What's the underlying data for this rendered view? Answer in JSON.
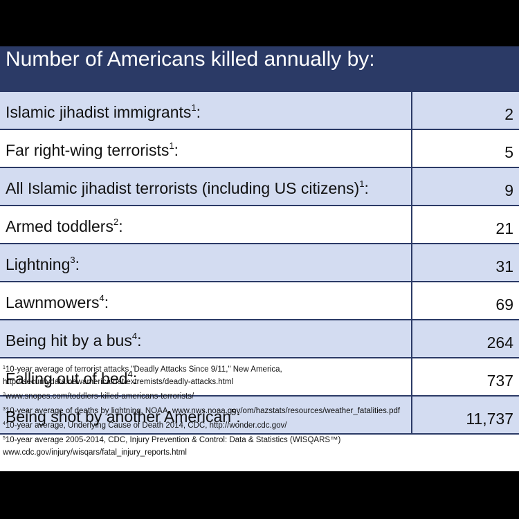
{
  "title": "Number of Americans killed annually by:",
  "rows": [
    {
      "label": "Islamic jihadist immigrants",
      "ref": "1",
      "suffix": ":",
      "value": "2"
    },
    {
      "label": "Far right-wing terrorists",
      "ref": "1",
      "suffix": ":",
      "value": "5"
    },
    {
      "label": "All Islamic jihadist terrorists (including US citizens)",
      "ref": "1",
      "suffix": ":",
      "value": "9"
    },
    {
      "label": "Armed toddlers",
      "ref": "2",
      "suffix": ":",
      "value": "21"
    },
    {
      "label": "Lightning",
      "ref": "3",
      "suffix": ":",
      "value": "31"
    },
    {
      "label": "Lawnmowers",
      "ref": "4",
      "suffix": ":",
      "value": "69"
    },
    {
      "label": "Being hit by a bus",
      "ref": "4",
      "suffix": ":",
      "value": "264"
    },
    {
      "label": "Falling out of bed",
      "ref": "4",
      "suffix": ":",
      "value": "737"
    },
    {
      "label": "Being shot by another American",
      "ref": "5",
      "suffix": ":",
      "value": "11,737"
    }
  ],
  "footnotes": [
    {
      "num": "1",
      "line1": "10-year average of terrorist attacks \"Deadly Attacks Since 9/11,\" New America,",
      "line2": "http://securitydata.newamerica.net/extremists/deadly-attacks.html"
    },
    {
      "num": "2",
      "line1": "www.snopes.com/toddlers-killed-americans-terrorists/",
      "line2": ""
    },
    {
      "num": "3",
      "line1": "10-year average of deaths by lightning, NOAA, www.nws.noaa.gov/om/hazstats/resources/weather_fatalities.pdf",
      "line2": ""
    },
    {
      "num": "4",
      "line1": "10-year average, Underlying Cause of Death 2014, CDC, http://wonder.cdc.gov/",
      "line2": ""
    },
    {
      "num": "5",
      "line1": "10-year average 2005-2014, CDC, Injury Prevention & Control: Data & Statistics (WISQARS™)",
      "line2": "www.cdc.gov/injury/wisqars/fatal_injury_reports.html"
    }
  ]
}
